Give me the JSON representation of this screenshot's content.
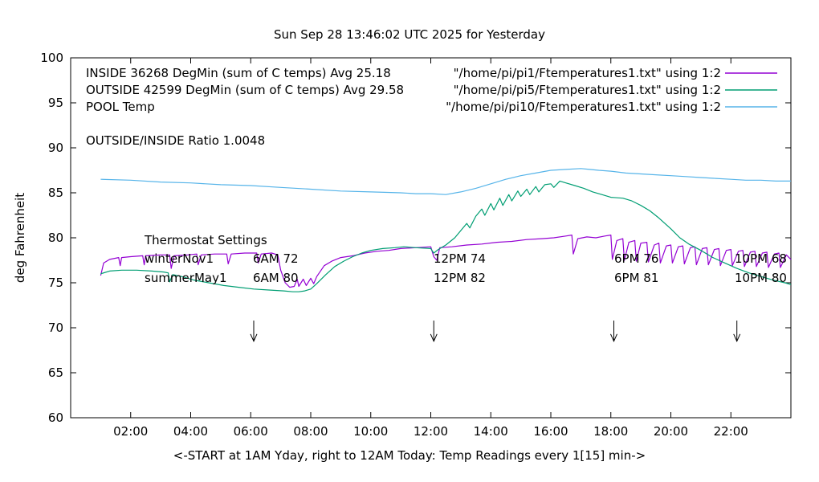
{
  "title": "Sun Sep 28 13:46:02 UTC 2025 for Yesterday",
  "legend": {
    "rows": [
      {
        "label": "INSIDE 36268 DegMin (sum of C temps) Avg 25.18",
        "source": "\"/home/pi/pi1/Ftemperatures1.txt\" using 1:2",
        "color": "#9400d3"
      },
      {
        "label": "OUTSIDE 42599 DegMin (sum of C temps) Avg 29.58",
        "source": "\"/home/pi/pi5/Ftemperatures1.txt\" using 1:2",
        "color": "#009e73"
      },
      {
        "label": "POOL Temp",
        "source": "\"/home/pi/pi10/Ftemperatures1.txt\" using 1:2",
        "color": "#56b4e9"
      }
    ]
  },
  "ratio_text": "OUTSIDE/INSIDE Ratio 1.0048",
  "thermostat": {
    "heading": "Thermostat Settings",
    "rows": [
      {
        "season": "winterNov1",
        "c1": "6AM 72",
        "c2": "12PM 74",
        "c3": "6PM 76",
        "c4": "10PM 68"
      },
      {
        "season": "summerMay1",
        "c1": "6AM 80",
        "c2": "12PM 82",
        "c3": "6PM 81",
        "c4": "10PM 80"
      }
    ]
  },
  "axes": {
    "ylabel": "deg Fahrenheit",
    "xlabel": "<-START at 1AM Yday, right to 12AM Today:  Temp Readings every 1[15] min->"
  },
  "chart_data": {
    "type": "line",
    "title": "Sun Sep 28 13:46:02 UTC 2025 for Yesterday",
    "xlabel": "<-START at 1AM Yday, right to 12AM Today:  Temp Readings every 1[15] min->",
    "ylabel": "deg Fahrenheit",
    "xlim": [
      0,
      24
    ],
    "ylim": [
      60,
      100
    ],
    "grid": false,
    "legend_position": "top-right-inside",
    "x_ticks": [
      {
        "value": 2,
        "label": "02:00"
      },
      {
        "value": 4,
        "label": "04:00"
      },
      {
        "value": 6,
        "label": "06:00"
      },
      {
        "value": 8,
        "label": "08:00"
      },
      {
        "value": 10,
        "label": "10:00"
      },
      {
        "value": 12,
        "label": "12:00"
      },
      {
        "value": 14,
        "label": "14:00"
      },
      {
        "value": 16,
        "label": "16:00"
      },
      {
        "value": 18,
        "label": "18:00"
      },
      {
        "value": 20,
        "label": "20:00"
      },
      {
        "value": 22,
        "label": "22:00"
      }
    ],
    "y_ticks": [
      {
        "value": 60,
        "label": "60"
      },
      {
        "value": 65,
        "label": "65"
      },
      {
        "value": 70,
        "label": "70"
      },
      {
        "value": 75,
        "label": "75"
      },
      {
        "value": 80,
        "label": "80"
      },
      {
        "value": 85,
        "label": "85"
      },
      {
        "value": 90,
        "label": "90"
      },
      {
        "value": 95,
        "label": "95"
      },
      {
        "value": 100,
        "label": "100"
      }
    ],
    "arrows_x": [
      6.1,
      12.1,
      18.1,
      22.2
    ],
    "arrow_y_from": 70.8,
    "arrow_y_to": 68.5,
    "series": [
      {
        "name": "INSIDE",
        "color": "#9400d3",
        "points": [
          [
            1,
            75.8
          ],
          [
            1.1,
            77.2
          ],
          [
            1.3,
            77.6
          ],
          [
            1.6,
            77.8
          ],
          [
            1.65,
            76.9
          ],
          [
            1.7,
            77.8
          ],
          [
            2,
            77.9
          ],
          [
            2.4,
            78
          ],
          [
            2.45,
            77
          ],
          [
            2.5,
            78
          ],
          [
            3,
            78.1
          ],
          [
            3.3,
            78.1
          ],
          [
            3.35,
            76.6
          ],
          [
            3.45,
            78
          ],
          [
            3.9,
            78.1
          ],
          [
            4.2,
            78.2
          ],
          [
            4.25,
            77
          ],
          [
            4.35,
            78.1
          ],
          [
            4.8,
            78.2
          ],
          [
            5.2,
            78.2
          ],
          [
            5.25,
            77.1
          ],
          [
            5.35,
            78.2
          ],
          [
            5.8,
            78.3
          ],
          [
            6.2,
            78.3
          ],
          [
            6.25,
            77.2
          ],
          [
            6.35,
            78.2
          ],
          [
            6.7,
            78.3
          ],
          [
            6.9,
            78.1
          ],
          [
            7,
            76.4
          ],
          [
            7.15,
            75
          ],
          [
            7.3,
            74.5
          ],
          [
            7.45,
            74.6
          ],
          [
            7.55,
            75.4
          ],
          [
            7.6,
            74.6
          ],
          [
            7.75,
            75.4
          ],
          [
            7.85,
            74.7
          ],
          [
            8,
            75.5
          ],
          [
            8.1,
            74.9
          ],
          [
            8.2,
            75.7
          ],
          [
            8.45,
            76.9
          ],
          [
            8.7,
            77.4
          ],
          [
            9,
            77.8
          ],
          [
            9.4,
            78
          ],
          [
            9.8,
            78.3
          ],
          [
            10.2,
            78.5
          ],
          [
            10.6,
            78.6
          ],
          [
            11,
            78.8
          ],
          [
            11.5,
            78.9
          ],
          [
            12,
            79
          ],
          [
            12.1,
            77.9
          ],
          [
            12.2,
            77.5
          ],
          [
            12.3,
            78.9
          ],
          [
            12.7,
            79
          ],
          [
            13.2,
            79.2
          ],
          [
            13.7,
            79.3
          ],
          [
            14.2,
            79.5
          ],
          [
            14.7,
            79.6
          ],
          [
            15.2,
            79.8
          ],
          [
            15.7,
            79.9
          ],
          [
            16.1,
            80
          ],
          [
            16.5,
            80.2
          ],
          [
            16.7,
            80.3
          ],
          [
            16.75,
            78.2
          ],
          [
            16.9,
            79.9
          ],
          [
            17.2,
            80.1
          ],
          [
            17.5,
            80
          ],
          [
            17.8,
            80.2
          ],
          [
            18,
            80.3
          ],
          [
            18.05,
            77.6
          ],
          [
            18.2,
            79.7
          ],
          [
            18.4,
            79.9
          ],
          [
            18.45,
            77.5
          ],
          [
            18.6,
            79.5
          ],
          [
            18.8,
            79.7
          ],
          [
            18.85,
            77.4
          ],
          [
            19,
            79.4
          ],
          [
            19.2,
            79.5
          ],
          [
            19.25,
            77.3
          ],
          [
            19.45,
            79.2
          ],
          [
            19.6,
            79.4
          ],
          [
            19.65,
            77.2
          ],
          [
            19.85,
            79.1
          ],
          [
            20,
            79.2
          ],
          [
            20.05,
            77.2
          ],
          [
            20.25,
            79
          ],
          [
            20.4,
            79.1
          ],
          [
            20.45,
            77.1
          ],
          [
            20.65,
            78.9
          ],
          [
            20.8,
            79
          ],
          [
            20.85,
            77
          ],
          [
            21.05,
            78.8
          ],
          [
            21.2,
            78.9
          ],
          [
            21.25,
            77
          ],
          [
            21.45,
            78.7
          ],
          [
            21.6,
            78.8
          ],
          [
            21.65,
            76.9
          ],
          [
            21.85,
            78.6
          ],
          [
            22,
            78.7
          ],
          [
            22.05,
            76.9
          ],
          [
            22.25,
            78.5
          ],
          [
            22.4,
            78.6
          ],
          [
            22.45,
            76.8
          ],
          [
            22.65,
            78.4
          ],
          [
            22.8,
            78.5
          ],
          [
            22.85,
            76.8
          ],
          [
            23.05,
            78.3
          ],
          [
            23.2,
            78.4
          ],
          [
            23.25,
            76.7
          ],
          [
            23.45,
            78.2
          ],
          [
            23.6,
            78.3
          ],
          [
            23.65,
            76.7
          ],
          [
            23.85,
            78.1
          ],
          [
            24,
            77.6
          ]
        ]
      },
      {
        "name": "OUTSIDE",
        "color": "#009e73",
        "points": [
          [
            1,
            76
          ],
          [
            1.3,
            76.3
          ],
          [
            1.7,
            76.4
          ],
          [
            2.2,
            76.4
          ],
          [
            2.7,
            76.3
          ],
          [
            3.1,
            76.2
          ],
          [
            3.25,
            76.1
          ],
          [
            3.3,
            75.1
          ],
          [
            3.4,
            75.9
          ],
          [
            3.7,
            75.7
          ],
          [
            4.1,
            75.3
          ],
          [
            4.6,
            75
          ],
          [
            5.1,
            74.7
          ],
          [
            5.6,
            74.5
          ],
          [
            6.1,
            74.3
          ],
          [
            6.6,
            74.2
          ],
          [
            7.1,
            74.1
          ],
          [
            7.4,
            74
          ],
          [
            7.6,
            74
          ],
          [
            7.8,
            74.1
          ],
          [
            8,
            74.3
          ],
          [
            8.2,
            74.9
          ],
          [
            8.5,
            75.9
          ],
          [
            8.8,
            76.8
          ],
          [
            9.1,
            77.4
          ],
          [
            9.4,
            77.9
          ],
          [
            9.7,
            78.3
          ],
          [
            10,
            78.6
          ],
          [
            10.4,
            78.8
          ],
          [
            10.8,
            78.9
          ],
          [
            11.1,
            79
          ],
          [
            11.5,
            78.9
          ],
          [
            12,
            78.8
          ],
          [
            12.1,
            78.3
          ],
          [
            12.25,
            78.7
          ],
          [
            12.5,
            79.2
          ],
          [
            12.8,
            80
          ],
          [
            13,
            80.8
          ],
          [
            13.2,
            81.6
          ],
          [
            13.3,
            81.1
          ],
          [
            13.5,
            82.4
          ],
          [
            13.7,
            83.2
          ],
          [
            13.8,
            82.5
          ],
          [
            14,
            83.8
          ],
          [
            14.1,
            83.1
          ],
          [
            14.3,
            84.4
          ],
          [
            14.4,
            83.6
          ],
          [
            14.6,
            84.8
          ],
          [
            14.7,
            84.1
          ],
          [
            14.9,
            85.2
          ],
          [
            15,
            84.6
          ],
          [
            15.2,
            85.4
          ],
          [
            15.3,
            84.8
          ],
          [
            15.5,
            85.7
          ],
          [
            15.6,
            85.1
          ],
          [
            15.8,
            85.9
          ],
          [
            16,
            86
          ],
          [
            16.1,
            85.6
          ],
          [
            16.3,
            86.3
          ],
          [
            16.5,
            86.1
          ],
          [
            16.8,
            85.8
          ],
          [
            17.1,
            85.5
          ],
          [
            17.4,
            85.1
          ],
          [
            17.7,
            84.8
          ],
          [
            18,
            84.5
          ],
          [
            18.4,
            84.4
          ],
          [
            18.7,
            84.1
          ],
          [
            19,
            83.6
          ],
          [
            19.3,
            83
          ],
          [
            19.6,
            82.2
          ],
          [
            20,
            81
          ],
          [
            20.3,
            80
          ],
          [
            20.6,
            79.3
          ],
          [
            21,
            78.6
          ],
          [
            21.4,
            77.8
          ],
          [
            21.8,
            77.2
          ],
          [
            22.2,
            76.6
          ],
          [
            22.6,
            76.1
          ],
          [
            23,
            75.7
          ],
          [
            23.4,
            75.3
          ],
          [
            23.8,
            75
          ],
          [
            24,
            74.8
          ]
        ]
      },
      {
        "name": "POOL",
        "color": "#56b4e9",
        "points": [
          [
            1,
            86.5
          ],
          [
            2,
            86.4
          ],
          [
            3,
            86.2
          ],
          [
            4,
            86.1
          ],
          [
            5,
            85.9
          ],
          [
            6,
            85.8
          ],
          [
            7,
            85.6
          ],
          [
            8,
            85.4
          ],
          [
            9,
            85.2
          ],
          [
            10,
            85.1
          ],
          [
            11,
            85
          ],
          [
            11.5,
            84.9
          ],
          [
            12,
            84.9
          ],
          [
            12.5,
            84.8
          ],
          [
            13,
            85.1
          ],
          [
            13.5,
            85.5
          ],
          [
            14,
            86
          ],
          [
            14.5,
            86.5
          ],
          [
            15,
            86.9
          ],
          [
            15.5,
            87.2
          ],
          [
            16,
            87.5
          ],
          [
            16.5,
            87.6
          ],
          [
            17,
            87.7
          ],
          [
            17.3,
            87.6
          ],
          [
            17.6,
            87.5
          ],
          [
            18,
            87.4
          ],
          [
            18.5,
            87.2
          ],
          [
            19,
            87.1
          ],
          [
            19.5,
            87
          ],
          [
            20,
            86.9
          ],
          [
            20.5,
            86.8
          ],
          [
            21,
            86.7
          ],
          [
            21.5,
            86.6
          ],
          [
            22,
            86.5
          ],
          [
            22.5,
            86.4
          ],
          [
            23,
            86.4
          ],
          [
            23.5,
            86.3
          ],
          [
            24,
            86.3
          ]
        ]
      }
    ]
  }
}
